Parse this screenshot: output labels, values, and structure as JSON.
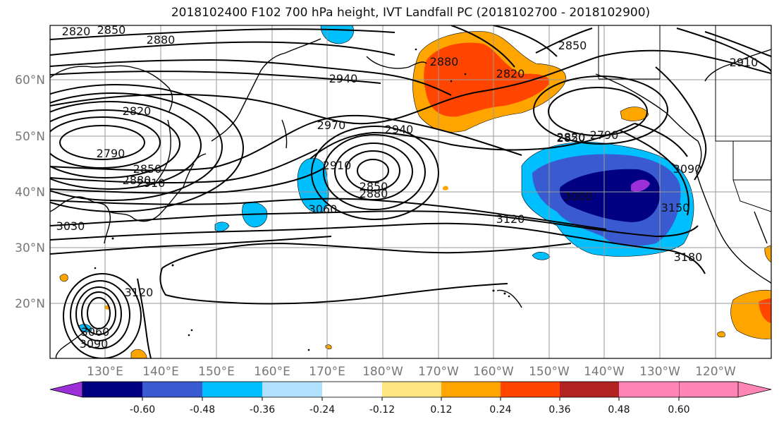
{
  "title": "2018102400 F102 700 hPa height, IVT Landfall PC (2018102700 - 2018102900)",
  "lat_labels": [
    "60°N",
    "50°N",
    "40°N",
    "30°N",
    "20°N"
  ],
  "lon_labels": [
    "130°E",
    "140°E",
    "150°E",
    "160°E",
    "170°E",
    "180°W",
    "170°W",
    "160°W",
    "150°W",
    "140°W",
    "130°W",
    "120°W"
  ],
  "contour_labels": [
    "2820",
    "2850",
    "2880",
    "2940",
    "2850",
    "2910",
    "2820",
    "2790",
    "2850",
    "2880",
    "2910",
    "2970",
    "2940",
    "2910",
    "2850",
    "2880",
    "3030",
    "2880",
    "2820",
    "2850",
    "2820",
    "2790",
    "3060",
    "3000",
    "3090",
    "3150",
    "3120",
    "3180",
    "3120",
    "3060",
    "3090"
  ],
  "colorbar": {
    "colors": [
      "#9b30d9",
      "#000080",
      "#3a5bd0",
      "#00bfff",
      "#b0e2ff",
      "#ffffff",
      "#ffe680",
      "#ffa500",
      "#ff4500",
      "#b22222",
      "#ff85b4"
    ],
    "ticks": [
      "-0.60",
      "-0.48",
      "-0.36",
      "-0.24",
      "-0.12",
      "0.12",
      "0.24",
      "0.36",
      "0.48",
      "0.60"
    ]
  }
}
